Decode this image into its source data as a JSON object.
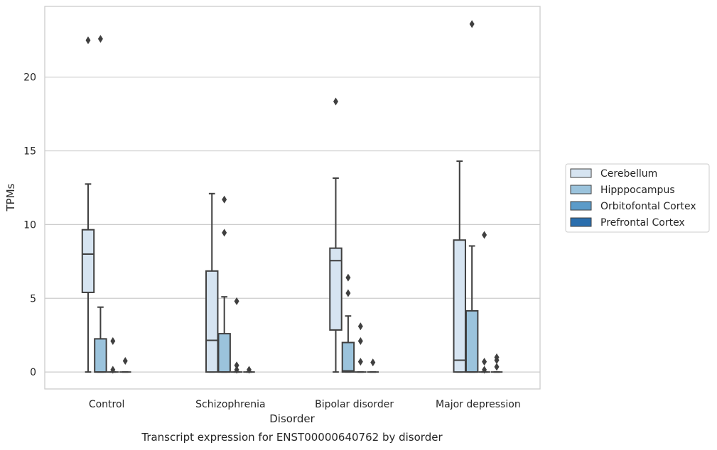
{
  "chart_data": {
    "type": "box",
    "caption": "Transcript expression for ENST00000640762 by disorder",
    "xlabel": "Disorder",
    "ylabel": "TPMs",
    "ylim": [
      -1.15,
      24.8
    ],
    "yticks": [
      0,
      5,
      10,
      15,
      20
    ],
    "grid": "horizontal",
    "legend_position": "right",
    "categories": [
      "Control",
      "Schizophrenia",
      "Bipolar disorder",
      "Major depression"
    ],
    "series": [
      {
        "name": "Cerebellum",
        "color": "#d6e4f1",
        "boxes": [
          {
            "whislo": 0,
            "q1": 5.4,
            "med": 8.0,
            "q3": 9.65,
            "whishi": 12.75,
            "fliers": [
              22.5
            ]
          },
          {
            "whislo": 0,
            "q1": 0,
            "med": 2.15,
            "q3": 6.85,
            "whishi": 12.1,
            "fliers": []
          },
          {
            "whislo": 0,
            "q1": 2.85,
            "med": 7.55,
            "q3": 8.4,
            "whishi": 13.15,
            "fliers": [
              18.35
            ]
          },
          {
            "whislo": 0,
            "q1": 0,
            "med": 0.8,
            "q3": 8.95,
            "whishi": 14.3,
            "fliers": []
          }
        ]
      },
      {
        "name": "Hipppocampus",
        "color": "#9bc3dc",
        "boxes": [
          {
            "whislo": 0,
            "q1": 0,
            "med": 0,
            "q3": 2.25,
            "whishi": 4.4,
            "fliers": [
              22.6
            ]
          },
          {
            "whislo": 0,
            "q1": 0,
            "med": 0,
            "q3": 2.6,
            "whishi": 5.1,
            "fliers": [
              11.7,
              9.45
            ]
          },
          {
            "whislo": 0,
            "q1": 0,
            "med": 0.08,
            "q3": 2.0,
            "whishi": 3.8,
            "fliers": [
              6.4,
              5.35
            ]
          },
          {
            "whislo": 0,
            "q1": 0,
            "med": 0,
            "q3": 4.15,
            "whishi": 8.55,
            "fliers": [
              23.6
            ]
          }
        ]
      },
      {
        "name": "Orbitofontal Cortex",
        "color": "#5b9bc9",
        "boxes": [
          {
            "whislo": 0,
            "q1": 0,
            "med": 0,
            "q3": 0,
            "whishi": 0,
            "fliers": [
              2.1,
              0.15
            ]
          },
          {
            "whislo": 0,
            "q1": 0,
            "med": 0,
            "q3": 0,
            "whishi": 0,
            "fliers": [
              4.8,
              0.45,
              0.15
            ]
          },
          {
            "whislo": 0,
            "q1": 0,
            "med": 0,
            "q3": 0,
            "whishi": 0,
            "fliers": [
              3.1,
              2.1,
              0.7
            ]
          },
          {
            "whislo": 0,
            "q1": 0,
            "med": 0,
            "q3": 0,
            "whishi": 0,
            "fliers": [
              9.3,
              0.7,
              0.15
            ]
          }
        ]
      },
      {
        "name": "Prefrontal Cortex",
        "color": "#2a6ead",
        "boxes": [
          {
            "whislo": 0,
            "q1": 0,
            "med": 0,
            "q3": 0,
            "whishi": 0,
            "fliers": [
              0.75
            ]
          },
          {
            "whislo": 0,
            "q1": 0,
            "med": 0,
            "q3": 0,
            "whishi": 0,
            "fliers": [
              0.15
            ]
          },
          {
            "whislo": 0,
            "q1": 0,
            "med": 0,
            "q3": 0,
            "whishi": 0,
            "fliers": [
              0.65
            ]
          },
          {
            "whislo": 0,
            "q1": 0,
            "med": 0,
            "q3": 0,
            "whishi": 0,
            "fliers": [
              1.0,
              0.8,
              0.35
            ]
          }
        ]
      }
    ]
  }
}
